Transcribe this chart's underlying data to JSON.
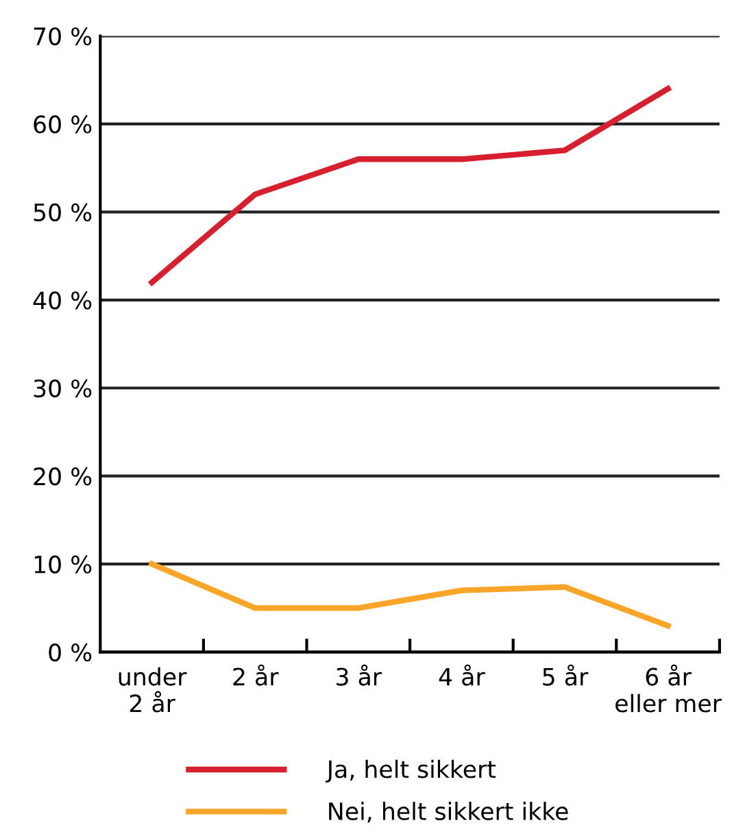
{
  "chart_data": {
    "type": "line",
    "categories": [
      "under\n2 år",
      "2 år",
      "3 år",
      "4 år",
      "5 år",
      "6 år\neller mer"
    ],
    "series": [
      {
        "name": "Ja, helt sikkert",
        "color": "#d7202f",
        "values": [
          42,
          52,
          56,
          56,
          57,
          64
        ]
      },
      {
        "name": "Nei, helt sikkert ikke",
        "color": "#f8a52a",
        "values": [
          10,
          5,
          5,
          7,
          7.4,
          3
        ]
      }
    ],
    "ylim": [
      0,
      70
    ],
    "yticks": [
      {
        "value": 0,
        "label": "0 %"
      },
      {
        "value": 10,
        "label": "10 %"
      },
      {
        "value": 20,
        "label": "20 %"
      },
      {
        "value": 30,
        "label": "30 %"
      },
      {
        "value": 40,
        "label": "40 %"
      },
      {
        "value": 50,
        "label": "50 %"
      },
      {
        "value": 60,
        "label": "60 %"
      },
      {
        "value": 70,
        "label": "70 %"
      }
    ],
    "grid": "y",
    "legend": "bottom",
    "marker": "none",
    "line_style": "solid"
  }
}
